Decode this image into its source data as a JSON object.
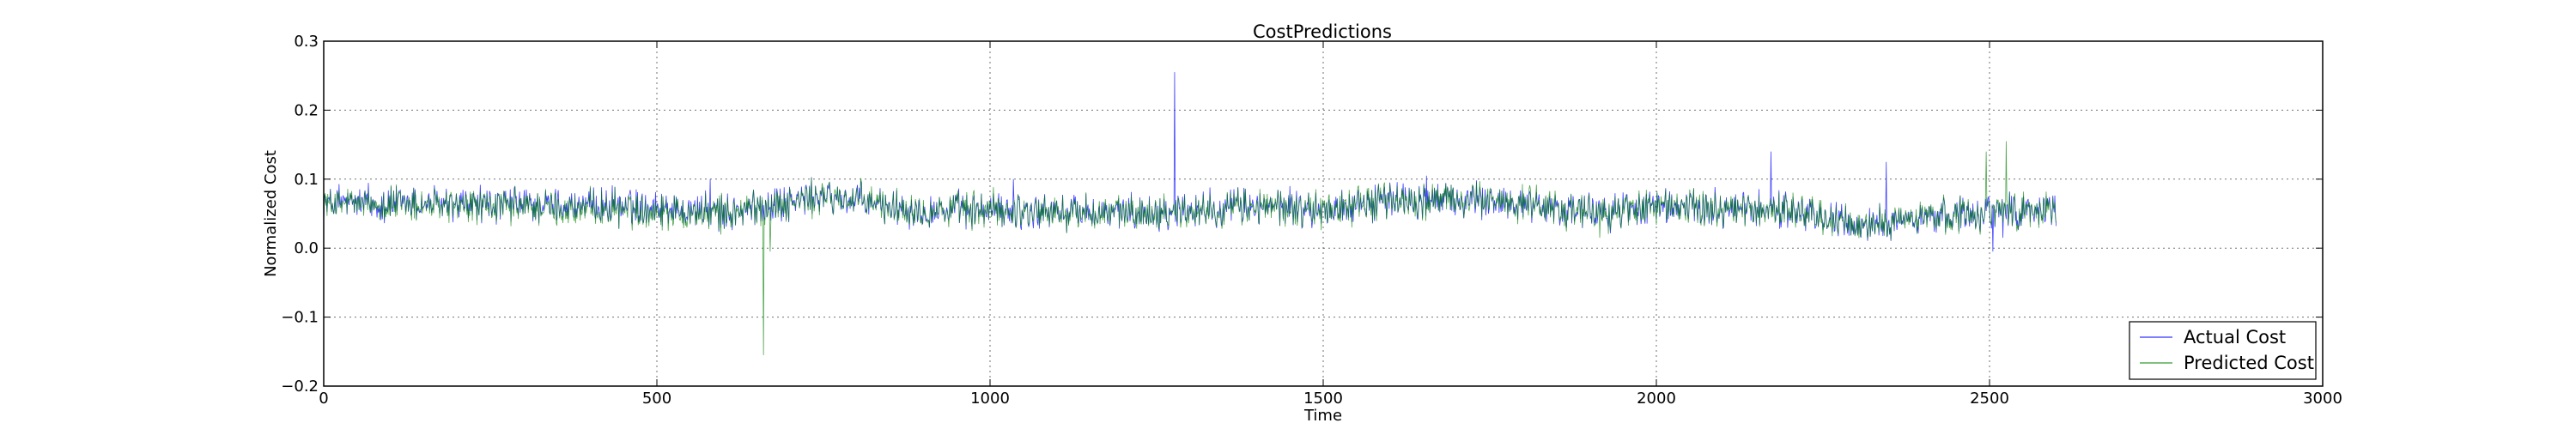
{
  "chart_data": {
    "type": "line",
    "title": "CostPredictions",
    "xlabel": "Time",
    "ylabel": "Normalized Cost",
    "xlim": [
      0,
      3000
    ],
    "ylim": [
      -0.2,
      0.3
    ],
    "xticks": [
      0,
      500,
      1000,
      1500,
      2000,
      2500,
      3000
    ],
    "xtick_labels": [
      "0",
      "500",
      "1000",
      "1500",
      "2000",
      "2500",
      "3000"
    ],
    "yticks": [
      -0.2,
      -0.1,
      0.0,
      0.1,
      0.2,
      0.3
    ],
    "ytick_labels": [
      "−0.2",
      "−0.1",
      "0.0",
      "0.1",
      "0.2",
      "0.3"
    ],
    "grid": true,
    "legend_position": "bottom-right",
    "x_range": [
      0,
      2600
    ],
    "series": [
      {
        "name": "Actual Cost",
        "color": "#0000ff",
        "baseline": [
          [
            0,
            0.065
          ],
          [
            500,
            0.06
          ],
          [
            600,
            0.05
          ],
          [
            750,
            0.075
          ],
          [
            900,
            0.055
          ],
          [
            1000,
            0.055
          ],
          [
            1200,
            0.05
          ],
          [
            1400,
            0.06
          ],
          [
            1500,
            0.055
          ],
          [
            1600,
            0.07
          ],
          [
            1700,
            0.07
          ],
          [
            1800,
            0.065
          ],
          [
            1900,
            0.05
          ],
          [
            2000,
            0.06
          ],
          [
            2200,
            0.055
          ],
          [
            2300,
            0.03
          ],
          [
            2400,
            0.045
          ],
          [
            2500,
            0.055
          ],
          [
            2600,
            0.055
          ]
        ],
        "spikes": [
          [
            1277,
            0.255
          ],
          [
            2172,
            0.14
          ],
          [
            2345,
            0.125
          ],
          [
            2505,
            -0.005
          ],
          [
            2520,
            0.015
          ],
          [
            1655,
            0.105
          ],
          [
            580,
            0.1
          ],
          [
            1035,
            0.1
          ],
          [
            1450,
            0.09
          ],
          [
            2050,
            0.075
          ]
        ]
      },
      {
        "name": "Predicted Cost",
        "color": "#008000",
        "baseline": [
          [
            0,
            0.065
          ],
          [
            500,
            0.055
          ],
          [
            600,
            0.05
          ],
          [
            750,
            0.075
          ],
          [
            900,
            0.055
          ],
          [
            1000,
            0.055
          ],
          [
            1200,
            0.05
          ],
          [
            1400,
            0.06
          ],
          [
            1500,
            0.055
          ],
          [
            1600,
            0.07
          ],
          [
            1700,
            0.07
          ],
          [
            1800,
            0.065
          ],
          [
            1900,
            0.05
          ],
          [
            2000,
            0.06
          ],
          [
            2200,
            0.055
          ],
          [
            2300,
            0.03
          ],
          [
            2400,
            0.045
          ],
          [
            2500,
            0.055
          ],
          [
            2600,
            0.055
          ]
        ],
        "spikes": [
          [
            660,
            -0.155
          ],
          [
            670,
            -0.005
          ],
          [
            2495,
            0.14
          ],
          [
            2525,
            0.155
          ],
          [
            1915,
            0.015
          ],
          [
            2540,
            0.04
          ],
          [
            545,
            0.03
          ]
        ]
      }
    ]
  }
}
